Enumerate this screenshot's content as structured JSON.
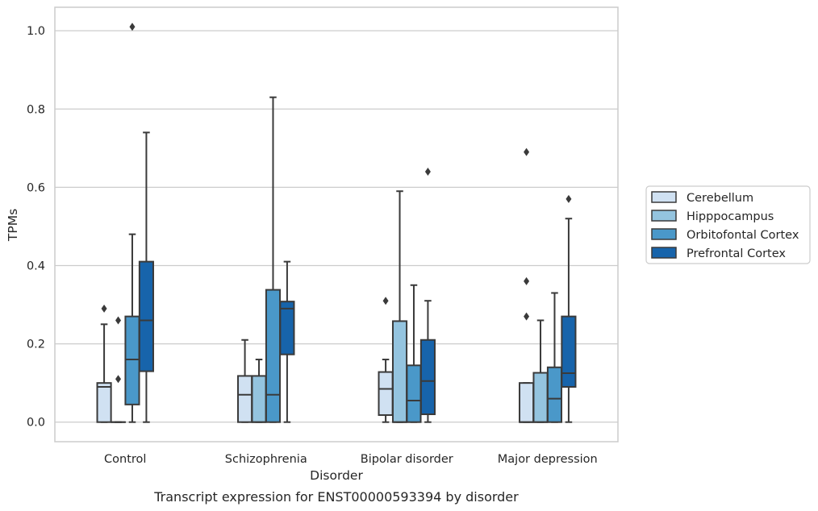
{
  "caption": "Transcript expression for ENST00000593394 by disorder",
  "chart_data": {
    "type": "boxplot",
    "xlabel": "Disorder",
    "ylabel": "TPMs",
    "ylim": [
      -0.05,
      1.06
    ],
    "yticks": [
      0.0,
      0.2,
      0.4,
      0.6,
      0.8,
      1.0
    ],
    "ytick_labels": [
      "0.0",
      "0.2",
      "0.4",
      "0.6",
      "0.8",
      "1.0"
    ],
    "grid": "horizontal",
    "legend_position": "right",
    "categories": [
      "Control",
      "Schizophrenia",
      "Bipolar disorder",
      "Major depression"
    ],
    "series": [
      {
        "name": "Cerebellum",
        "color": "#d0e1f2",
        "boxes": [
          {
            "whisker_low": 0.0,
            "q1": 0.0,
            "median": 0.09,
            "q3": 0.1,
            "whisker_high": 0.25,
            "outliers": [
              0.29
            ]
          },
          {
            "whisker_low": 0.0,
            "q1": 0.0,
            "median": 0.07,
            "q3": 0.118,
            "whisker_high": 0.21,
            "outliers": []
          },
          {
            "whisker_low": 0.0,
            "q1": 0.018,
            "median": 0.085,
            "q3": 0.128,
            "whisker_high": 0.16,
            "outliers": [
              0.31
            ]
          },
          {
            "whisker_low": 0.0,
            "q1": 0.0,
            "median": 0.0,
            "q3": 0.1,
            "whisker_high": 0.1,
            "outliers": [
              0.27,
              0.36,
              0.69
            ]
          }
        ]
      },
      {
        "name": "Hipppocampus",
        "color": "#94c4df",
        "boxes": [
          {
            "whisker_low": 0.0,
            "q1": 0.0,
            "median": 0.0,
            "q3": 0.0,
            "whisker_high": 0.0,
            "outliers": [
              0.11,
              0.26
            ]
          },
          {
            "whisker_low": 0.0,
            "q1": 0.0,
            "median": 0.0,
            "q3": 0.118,
            "whisker_high": 0.16,
            "outliers": []
          },
          {
            "whisker_low": 0.0,
            "q1": 0.0,
            "median": 0.0,
            "q3": 0.258,
            "whisker_high": 0.59,
            "outliers": []
          },
          {
            "whisker_low": 0.0,
            "q1": 0.0,
            "median": 0.0,
            "q3": 0.126,
            "whisker_high": 0.26,
            "outliers": []
          }
        ]
      },
      {
        "name": "Orbitofontal Cortex",
        "color": "#4a98c9",
        "boxes": [
          {
            "whisker_low": 0.0,
            "q1": 0.045,
            "median": 0.16,
            "q3": 0.27,
            "whisker_high": 0.48,
            "outliers": [
              1.01
            ]
          },
          {
            "whisker_low": 0.0,
            "q1": 0.0,
            "median": 0.07,
            "q3": 0.338,
            "whisker_high": 0.83,
            "outliers": []
          },
          {
            "whisker_low": 0.0,
            "q1": 0.0,
            "median": 0.055,
            "q3": 0.145,
            "whisker_high": 0.35,
            "outliers": []
          },
          {
            "whisker_low": 0.0,
            "q1": 0.0,
            "median": 0.06,
            "q3": 0.14,
            "whisker_high": 0.33,
            "outliers": []
          }
        ]
      },
      {
        "name": "Prefrontal Cortex",
        "color": "#1764ab",
        "boxes": [
          {
            "whisker_low": 0.0,
            "q1": 0.13,
            "median": 0.26,
            "q3": 0.41,
            "whisker_high": 0.74,
            "outliers": []
          },
          {
            "whisker_low": 0.0,
            "q1": 0.173,
            "median": 0.29,
            "q3": 0.308,
            "whisker_high": 0.41,
            "outliers": []
          },
          {
            "whisker_low": 0.0,
            "q1": 0.02,
            "median": 0.105,
            "q3": 0.21,
            "whisker_high": 0.31,
            "outliers": [
              0.64
            ]
          },
          {
            "whisker_low": 0.0,
            "q1": 0.09,
            "median": 0.125,
            "q3": 0.27,
            "whisker_high": 0.52,
            "outliers": [
              0.57
            ]
          }
        ]
      }
    ]
  }
}
